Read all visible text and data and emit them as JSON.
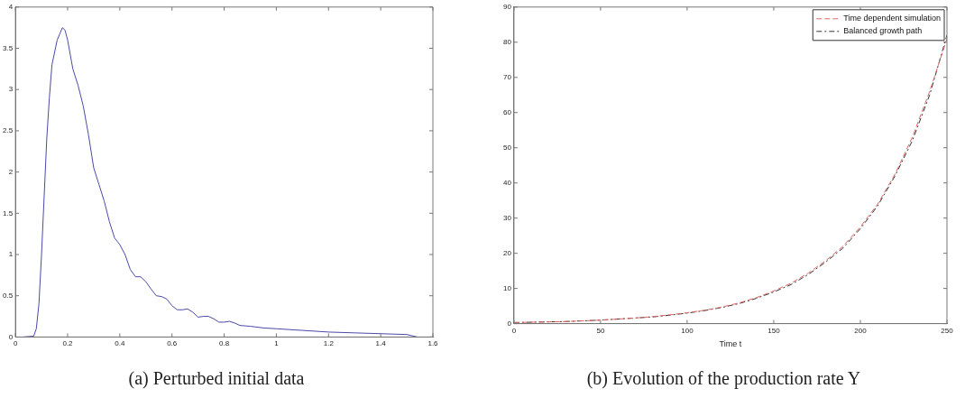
{
  "chart_data": [
    {
      "type": "line",
      "title": "(a) Perturbed initial data",
      "xlim": [
        0,
        1.6
      ],
      "xticks": [
        0,
        0.2,
        0.4,
        0.6,
        0.8,
        1,
        1.2,
        1.4,
        1.6
      ],
      "ylim": [
        0,
        4
      ],
      "yticks": [
        0,
        0.5,
        1,
        1.5,
        2,
        2.5,
        3,
        3.5,
        4
      ],
      "grid": false,
      "legend": false,
      "marker": "none",
      "line_style": "solid",
      "series": [
        {
          "color": "#4a4aa8",
          "x": [
            0.03,
            0.07,
            0.08,
            0.09,
            0.1,
            0.11,
            0.12,
            0.13,
            0.14,
            0.16,
            0.18,
            0.19,
            0.2,
            0.22,
            0.24,
            0.26,
            0.28,
            0.3,
            0.32,
            0.34,
            0.36,
            0.38,
            0.4,
            0.42,
            0.44,
            0.46,
            0.48,
            0.5,
            0.52,
            0.54,
            0.56,
            0.58,
            0.6,
            0.62,
            0.64,
            0.66,
            0.68,
            0.7,
            0.72,
            0.74,
            0.76,
            0.78,
            0.8,
            0.82,
            0.84,
            0.86,
            0.9,
            0.95,
            1.0,
            1.1,
            1.2,
            1.3,
            1.4,
            1.5,
            1.54
          ],
          "values": [
            0,
            0.01,
            0.1,
            0.4,
            1.0,
            1.7,
            2.4,
            2.9,
            3.3,
            3.6,
            3.75,
            3.72,
            3.6,
            3.25,
            3.05,
            2.8,
            2.45,
            2.05,
            1.85,
            1.65,
            1.4,
            1.2,
            1.12,
            1.0,
            0.82,
            0.73,
            0.73,
            0.67,
            0.58,
            0.5,
            0.49,
            0.46,
            0.38,
            0.33,
            0.33,
            0.34,
            0.3,
            0.24,
            0.25,
            0.25,
            0.22,
            0.18,
            0.18,
            0.19,
            0.17,
            0.14,
            0.13,
            0.11,
            0.1,
            0.08,
            0.06,
            0.05,
            0.04,
            0.03,
            0
          ]
        }
      ]
    },
    {
      "type": "line",
      "title": "(b) Evolution of the production rate Y",
      "xlabel": "Time t",
      "xlim": [
        0,
        250
      ],
      "xticks": [
        0,
        50,
        100,
        150,
        200,
        250
      ],
      "ylim": [
        0,
        90
      ],
      "yticks": [
        0,
        10,
        20,
        30,
        40,
        50,
        60,
        70,
        80,
        90
      ],
      "grid": false,
      "legend": "top right",
      "marker": "none",
      "x": [
        0,
        10,
        20,
        30,
        40,
        50,
        60,
        70,
        80,
        90,
        100,
        110,
        120,
        130,
        140,
        150,
        160,
        170,
        180,
        190,
        200,
        210,
        220,
        230,
        240,
        250
      ],
      "series": [
        {
          "name": "Time dependent simulation",
          "color": "#e06666",
          "line_style": "dashed",
          "values": [
            0.3,
            0.4,
            0.5,
            0.6,
            0.8,
            1.0,
            1.3,
            1.6,
            2.0,
            2.5,
            3.1,
            3.8,
            4.7,
            5.9,
            7.4,
            9.3,
            11.5,
            14.4,
            17.9,
            22,
            27.5,
            34,
            42.5,
            53,
            66,
            81
          ]
        },
        {
          "name": "Balanced growth path",
          "color": "#333333",
          "line_style": "dashed",
          "values": [
            0.3,
            0.4,
            0.5,
            0.6,
            0.8,
            1.0,
            1.3,
            1.6,
            1.9,
            2.4,
            3.0,
            3.7,
            4.6,
            5.7,
            7.2,
            9.0,
            11.1,
            14,
            17.5,
            21.5,
            27,
            33.5,
            42,
            52,
            65,
            82
          ]
        }
      ]
    }
  ]
}
